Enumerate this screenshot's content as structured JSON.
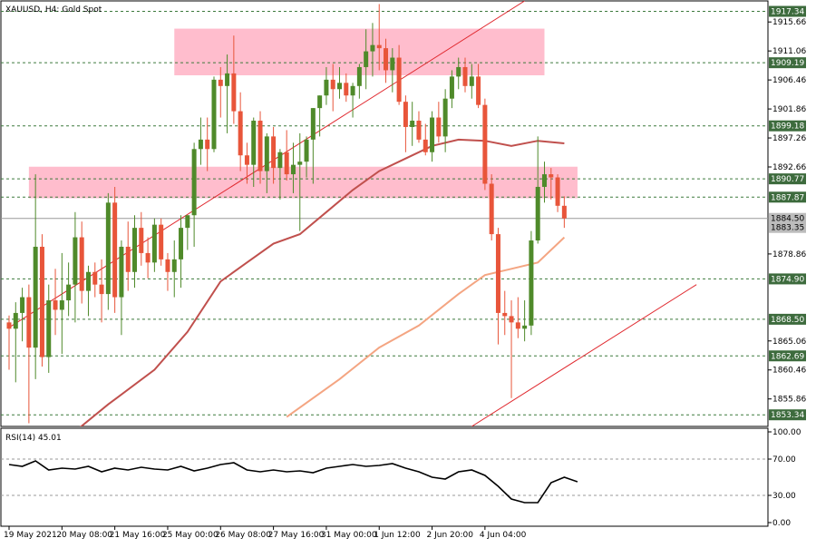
{
  "header": {
    "main_title": "XAUUSD, H4:  Gold Spot",
    "rsi_title": "RSI(14) 45.01"
  },
  "colors": {
    "bull": "#4f8a2a",
    "bear": "#e8553a",
    "wick": "#3a3a3a",
    "zone": "#ffb6c8",
    "ma_slow": "#c0504d",
    "ma_fast": "#f4a582",
    "trendline": "#e0282e",
    "level_line": "#3d7a3d",
    "price_tag_bg": "#3d6b3d",
    "price_tag_text": "#ffffff",
    "current_tag_bg": "#bcbcbc",
    "rsi_line": "#000000"
  },
  "chart_data": [
    {
      "type": "candlestick",
      "symbol": "XAUUSD",
      "timeframe": "H4",
      "title": "XAUUSD, H4:  Gold Spot",
      "ylim": [
        1851.5,
        1919.0
      ],
      "y_ticks": [
        1915.66,
        1911.06,
        1906.46,
        1901.86,
        1897.26,
        1892.66,
        1888.06,
        1883.46,
        1878.86,
        1874.26,
        1869.66,
        1865.06,
        1860.46,
        1855.86
      ],
      "y_ticks_hidden": [
        1888.06,
        1883.46,
        1874.26,
        1869.66
      ],
      "x_tick_labels": [
        "19 May 2021",
        "20 May 08:00",
        "21 May 16:00",
        "25 May 00:00",
        "26 May 08:00",
        "27 May 16:00",
        "31 May 00:00",
        "1 Jun 12:00",
        "2 Jun 20:00",
        "4 Jun 04:00"
      ],
      "x_tick_index": [
        0,
        8,
        16,
        24,
        32,
        40,
        48,
        56,
        64,
        72
      ],
      "horizontal_levels": [
        1917.34,
        1909.19,
        1899.18,
        1890.77,
        1887.87,
        1874.9,
        1868.5,
        1862.69,
        1853.34
      ],
      "current_price": 1884.5,
      "secondary_price": 1883.35,
      "zones": [
        {
          "from_index": 25,
          "to_index": 81,
          "low": 1907.2,
          "high": 1914.6
        },
        {
          "from_index": 3,
          "to_index": 86,
          "low": 1887.7,
          "high": 1892.7
        }
      ],
      "trendlines": [
        {
          "from": [
            0,
            1867.2
          ],
          "to": [
            78,
            1919.0
          ]
        },
        {
          "from": [
            70,
            1851.5
          ],
          "to": [
            104,
            1874.0
          ]
        }
      ],
      "ohlc": [
        [
          1868.0,
          1869.1,
          1860.5,
          1867.0
        ],
        [
          1867.0,
          1871.2,
          1858.5,
          1869.5
        ],
        [
          1869.5,
          1873.5,
          1865.0,
          1872.0
        ],
        [
          1872.0,
          1874.0,
          1852.0,
          1864.0
        ],
        [
          1864.0,
          1891.5,
          1859.0,
          1880.0
        ],
        [
          1880.0,
          1882.0,
          1861.0,
          1862.5
        ],
        [
          1862.5,
          1874.0,
          1860.0,
          1871.5
        ],
        [
          1871.5,
          1876.5,
          1866.0,
          1870.0
        ],
        [
          1870.0,
          1879.0,
          1863.0,
          1871.5
        ],
        [
          1871.5,
          1877.5,
          1869.0,
          1874.0
        ],
        [
          1874.0,
          1885.5,
          1868.0,
          1881.5
        ],
        [
          1881.5,
          1884.0,
          1871.0,
          1873.0
        ],
        [
          1873.0,
          1877.0,
          1869.0,
          1876.0
        ],
        [
          1876.0,
          1877.5,
          1872.0,
          1874.0
        ],
        [
          1874.0,
          1878.0,
          1868.0,
          1872.5
        ],
        [
          1872.5,
          1888.5,
          1870.0,
          1887.0
        ],
        [
          1887.0,
          1889.5,
          1869.5,
          1872.0
        ],
        [
          1872.0,
          1881.0,
          1866.0,
          1880.0
        ],
        [
          1880.0,
          1884.0,
          1873.0,
          1876.0
        ],
        [
          1876.0,
          1885.0,
          1873.5,
          1883.0
        ],
        [
          1883.0,
          1885.5,
          1877.0,
          1879.0
        ],
        [
          1879.0,
          1881.5,
          1875.0,
          1877.5
        ],
        [
          1877.5,
          1884.5,
          1876.0,
          1883.5
        ],
        [
          1883.5,
          1884.5,
          1877.0,
          1878.0
        ],
        [
          1878.0,
          1879.0,
          1873.0,
          1876.0
        ],
        [
          1876.0,
          1881.0,
          1872.0,
          1878.0
        ],
        [
          1878.0,
          1885.0,
          1873.5,
          1883.0
        ],
        [
          1883.0,
          1885.0,
          1879.5,
          1885.0
        ],
        [
          1885.0,
          1896.5,
          1880.0,
          1895.5
        ],
        [
          1895.5,
          1900.5,
          1893.0,
          1897.0
        ],
        [
          1897.0,
          1900.5,
          1892.0,
          1895.5
        ],
        [
          1895.5,
          1907.0,
          1895.0,
          1906.5
        ],
        [
          1906.5,
          1908.5,
          1900.5,
          1905.5
        ],
        [
          1905.5,
          1910.5,
          1898.0,
          1907.5
        ],
        [
          1907.5,
          1913.5,
          1899.5,
          1901.5
        ],
        [
          1901.5,
          1904.5,
          1892.0,
          1894.5
        ],
        [
          1894.5,
          1896.5,
          1890.0,
          1893.0
        ],
        [
          1893.0,
          1900.5,
          1889.5,
          1900.0
        ],
        [
          1900.0,
          1901.5,
          1890.0,
          1892.0
        ],
        [
          1892.0,
          1898.0,
          1888.5,
          1897.5
        ],
        [
          1897.5,
          1899.0,
          1890.0,
          1892.5
        ],
        [
          1892.5,
          1895.5,
          1887.5,
          1895.0
        ],
        [
          1895.0,
          1898.5,
          1890.5,
          1891.5
        ],
        [
          1891.5,
          1896.5,
          1888.5,
          1893.0
        ],
        [
          1893.0,
          1898.0,
          1882.5,
          1893.5
        ],
        [
          1893.5,
          1897.5,
          1891.0,
          1897.0
        ],
        [
          1897.0,
          1902.0,
          1890.0,
          1902.0
        ],
        [
          1902.0,
          1904.0,
          1897.5,
          1904.0
        ],
        [
          1904.0,
          1908.5,
          1902.5,
          1906.5
        ],
        [
          1906.5,
          1909.0,
          1901.5,
          1905.0
        ],
        [
          1905.0,
          1908.5,
          1903.5,
          1906.0
        ],
        [
          1906.0,
          1907.5,
          1903.0,
          1904.0
        ],
        [
          1904.0,
          1906.0,
          1900.5,
          1905.5
        ],
        [
          1905.5,
          1909.0,
          1903.5,
          1908.5
        ],
        [
          1908.5,
          1914.5,
          1905.0,
          1911.0
        ],
        [
          1911.0,
          1915.5,
          1907.0,
          1912.0
        ],
        [
          1912.0,
          1918.5,
          1908.0,
          1911.5
        ],
        [
          1911.5,
          1913.0,
          1906.0,
          1908.0
        ],
        [
          1908.0,
          1911.5,
          1904.5,
          1910.0
        ],
        [
          1910.0,
          1912.0,
          1902.5,
          1903.0
        ],
        [
          1903.0,
          1904.0,
          1895.0,
          1899.0
        ],
        [
          1899.0,
          1903.0,
          1896.0,
          1900.0
        ],
        [
          1900.0,
          1901.5,
          1896.5,
          1897.0
        ],
        [
          1897.0,
          1899.5,
          1894.5,
          1895.0
        ],
        [
          1895.0,
          1901.5,
          1893.5,
          1900.5
        ],
        [
          1900.5,
          1903.0,
          1896.5,
          1897.5
        ],
        [
          1897.5,
          1905.0,
          1895.0,
          1903.5
        ],
        [
          1903.5,
          1908.0,
          1902.0,
          1907.0
        ],
        [
          1907.0,
          1910.0,
          1905.0,
          1908.5
        ],
        [
          1908.5,
          1910.0,
          1904.5,
          1905.5
        ],
        [
          1905.5,
          1909.0,
          1903.5,
          1907.0
        ],
        [
          1907.0,
          1909.0,
          1902.0,
          1902.5
        ],
        [
          1902.5,
          1903.5,
          1889.0,
          1890.0
        ],
        [
          1890.0,
          1891.5,
          1881.0,
          1882.0
        ],
        [
          1882.0,
          1883.0,
          1864.5,
          1869.5
        ],
        [
          1869.5,
          1873.0,
          1866.0,
          1869.0
        ],
        [
          1869.0,
          1871.5,
          1856.0,
          1868.0
        ],
        [
          1868.0,
          1872.0,
          1865.5,
          1867.0
        ],
        [
          1867.0,
          1871.5,
          1865.0,
          1867.5
        ],
        [
          1867.5,
          1882.5,
          1866.0,
          1881.0
        ],
        [
          1881.0,
          1897.5,
          1880.5,
          1889.5
        ],
        [
          1889.5,
          1893.5,
          1887.0,
          1891.5
        ],
        [
          1891.5,
          1892.5,
          1887.5,
          1891.0
        ],
        [
          1891.0,
          1891.5,
          1885.5,
          1886.5
        ],
        [
          1886.5,
          1888.0,
          1883.0,
          1884.5
        ]
      ],
      "series": [
        {
          "values": [
            [
              8,
              1849.0
            ],
            [
              15,
              1855.0
            ],
            [
              22,
              1860.5
            ],
            [
              27,
              1866.5
            ],
            [
              32,
              1874.5
            ],
            [
              36,
              1877.5
            ],
            [
              40,
              1880.5
            ],
            [
              44,
              1882.0
            ],
            [
              48,
              1885.5
            ],
            [
              52,
              1889.0
            ],
            [
              56,
              1892.0
            ],
            [
              60,
              1894.0
            ],
            [
              64,
              1896.0
            ],
            [
              68,
              1897.0
            ],
            [
              72,
              1896.8
            ],
            [
              76,
              1896.0
            ],
            [
              80,
              1896.8
            ],
            [
              84,
              1896.4
            ]
          ]
        },
        {
          "values": [
            [
              42,
              1853.0
            ],
            [
              50,
              1859.0
            ],
            [
              56,
              1864.0
            ],
            [
              62,
              1867.5
            ],
            [
              68,
              1872.5
            ],
            [
              72,
              1875.5
            ],
            [
              76,
              1876.5
            ],
            [
              80,
              1877.5
            ],
            [
              84,
              1881.5
            ]
          ]
        }
      ]
    },
    {
      "type": "line",
      "title": "RSI(14) 45.01",
      "ylim": [
        -4,
        104
      ],
      "y_ticks": [
        100.0,
        70.0,
        30.0,
        0.0
      ],
      "y_tick_labels": [
        "100.00",
        "70.00",
        "30.00",
        "0.00"
      ],
      "reference_lines": [
        70,
        30
      ],
      "x_range": [
        0,
        84
      ],
      "series": [
        {
          "name": "RSI(14)",
          "values": [
            [
              0,
              64
            ],
            [
              2,
              62
            ],
            [
              4,
              68
            ],
            [
              6,
              58
            ],
            [
              8,
              60
            ],
            [
              10,
              59
            ],
            [
              12,
              62
            ],
            [
              14,
              56
            ],
            [
              16,
              60
            ],
            [
              18,
              58
            ],
            [
              20,
              61
            ],
            [
              22,
              59
            ],
            [
              24,
              58
            ],
            [
              26,
              62
            ],
            [
              28,
              57
            ],
            [
              30,
              60
            ],
            [
              32,
              64
            ],
            [
              34,
              66
            ],
            [
              36,
              58
            ],
            [
              38,
              56
            ],
            [
              40,
              58
            ],
            [
              42,
              56
            ],
            [
              44,
              57
            ],
            [
              46,
              55
            ],
            [
              48,
              60
            ],
            [
              50,
              62
            ],
            [
              52,
              64
            ],
            [
              54,
              62
            ],
            [
              56,
              63
            ],
            [
              58,
              65
            ],
            [
              60,
              60
            ],
            [
              62,
              56
            ],
            [
              64,
              50
            ],
            [
              66,
              48
            ],
            [
              68,
              56
            ],
            [
              70,
              58
            ],
            [
              72,
              52
            ],
            [
              74,
              40
            ],
            [
              76,
              26
            ],
            [
              78,
              22
            ],
            [
              80,
              22
            ],
            [
              82,
              44
            ],
            [
              84,
              50
            ],
            [
              86,
              45
            ]
          ]
        }
      ]
    }
  ]
}
